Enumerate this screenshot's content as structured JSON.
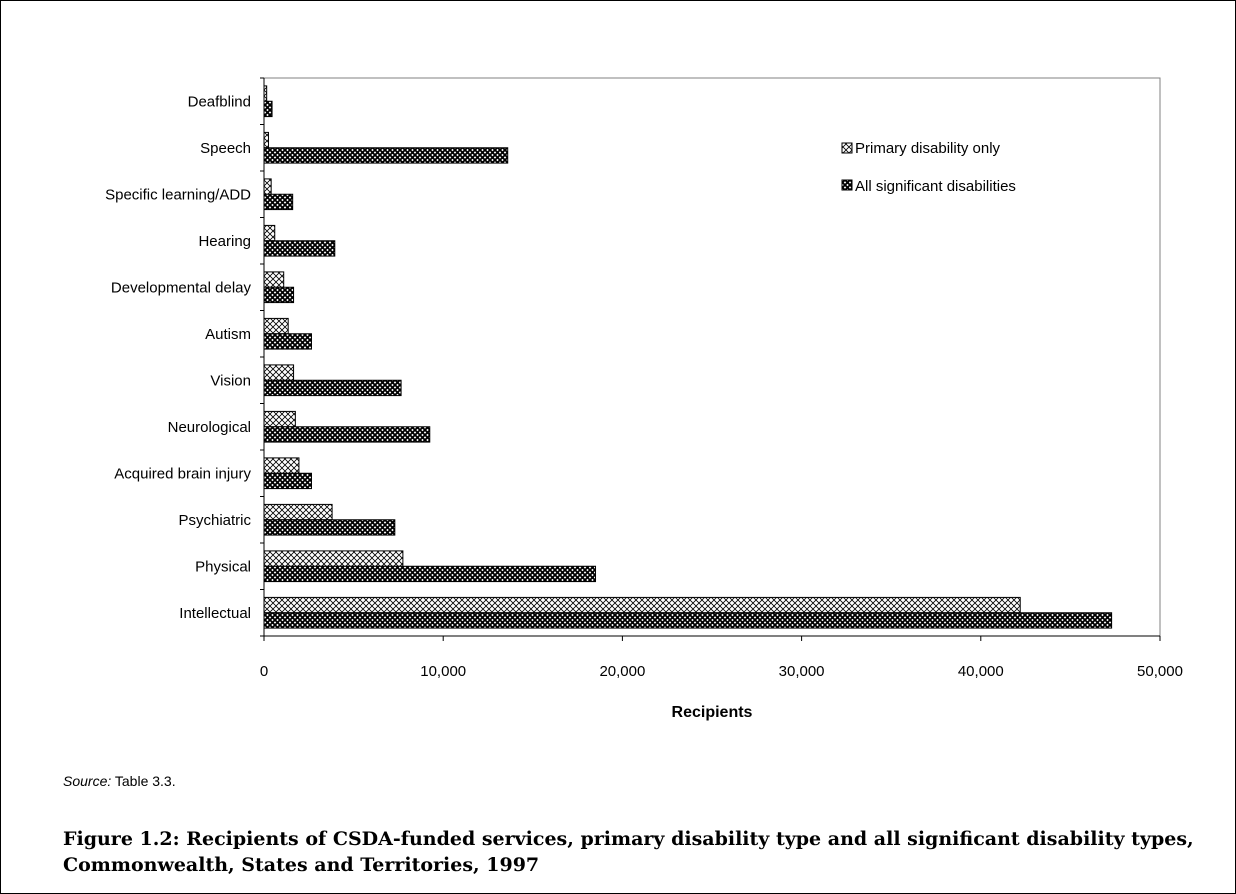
{
  "chart_data": {
    "type": "bar",
    "orientation": "horizontal",
    "categories": [
      "Deafblind",
      "Speech",
      "Specific learning/ADD",
      "Hearing",
      "Developmental delay",
      "Autism",
      "Vision",
      "Neurological",
      "Acquired brain injury",
      "Psychiatric",
      "Physical",
      "Intellectual"
    ],
    "series": [
      {
        "name": "Primary disability only",
        "values": [
          150,
          250,
          400,
          600,
          1100,
          1350,
          1650,
          1750,
          1950,
          3800,
          7750,
          42200
        ],
        "pattern": "light-crosshatch"
      },
      {
        "name": "All significant disabilities",
        "values": [
          450,
          13600,
          1600,
          3950,
          1650,
          2650,
          7650,
          9250,
          2650,
          7300,
          18500,
          47300
        ],
        "pattern": "dark-crosshatch"
      }
    ],
    "xlabel": "Recipients",
    "xlim": [
      0,
      50000
    ],
    "xticks": [
      0,
      10000,
      20000,
      30000,
      40000,
      50000
    ],
    "xtick_labels": [
      "0",
      "10,000",
      "20,000",
      "30,000",
      "40,000",
      "50,000"
    ],
    "grid": false,
    "legend_position": "top-right"
  },
  "source": {
    "label": "Source:",
    "text": " Table 3.3."
  },
  "caption": "Figure 1.2: Recipients of CSDA-funded services, primary disability type and all significant disability types, Commonwealth, States and Territories, 1997"
}
